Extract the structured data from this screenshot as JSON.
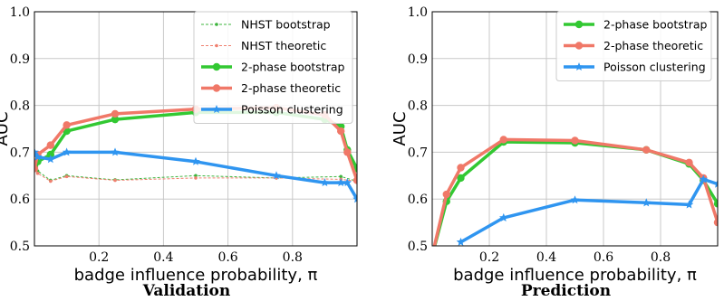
{
  "chart_data": [
    {
      "type": "line",
      "caption": "Validation",
      "xlabel": "badge influence probability, π",
      "ylabel": "AUC",
      "xlim": [
        0.0,
        1.0
      ],
      "ylim": [
        0.5,
        1.0
      ],
      "xticks": [
        0.2,
        0.4,
        0.6,
        0.8
      ],
      "xtick_labels": [
        "0.2",
        "0.4",
        "0.6",
        "0.8"
      ],
      "yticks": [
        0.5,
        0.6,
        0.7,
        0.8,
        0.9,
        1.0
      ],
      "ytick_labels": [
        "0.5",
        "0.6",
        "0.7",
        "0.8",
        "0.9",
        "1.0"
      ],
      "grid": true,
      "legend_position": "top-right",
      "series": [
        {
          "name": "NHST bootstrap",
          "color": "#3cb43c",
          "style": "dashed-dot-marker",
          "x": [
            0.0,
            0.01,
            0.05,
            0.1,
            0.25,
            0.5,
            0.75,
            0.95,
            1.0
          ],
          "y": [
            0.675,
            0.66,
            0.64,
            0.65,
            0.641,
            0.65,
            0.645,
            0.648,
            0.638
          ]
        },
        {
          "name": "NHST theoretic",
          "color": "#f08070",
          "style": "dashed-dot-marker",
          "x": [
            0.0,
            0.01,
            0.05,
            0.1,
            0.25,
            0.5,
            0.75,
            0.95,
            1.0
          ],
          "y": [
            0.67,
            0.655,
            0.638,
            0.648,
            0.64,
            0.645,
            0.645,
            0.642,
            0.638
          ]
        },
        {
          "name": "2-phase bootstrap",
          "color": "#32c832",
          "style": "thick-dot-marker",
          "x": [
            0.0,
            0.01,
            0.05,
            0.1,
            0.25,
            0.5,
            0.75,
            0.9,
            0.95,
            0.97,
            1.0
          ],
          "y": [
            0.67,
            0.68,
            0.695,
            0.745,
            0.77,
            0.785,
            0.785,
            0.77,
            0.755,
            0.705,
            0.665
          ]
        },
        {
          "name": "2-phase theoretic",
          "color": "#f07868",
          "style": "thick-dot-marker",
          "x": [
            0.0,
            0.01,
            0.05,
            0.1,
            0.25,
            0.5,
            0.75,
            0.9,
            0.95,
            0.97,
            1.0
          ],
          "y": [
            0.665,
            0.695,
            0.715,
            0.758,
            0.782,
            0.792,
            0.795,
            0.78,
            0.745,
            0.7,
            0.64
          ]
        },
        {
          "name": "Poisson clustering",
          "color": "#2f95f0",
          "style": "thick-star-marker",
          "x": [
            0.0,
            0.01,
            0.05,
            0.1,
            0.25,
            0.5,
            0.75,
            0.9,
            0.95,
            0.97,
            1.0
          ],
          "y": [
            0.7,
            0.69,
            0.685,
            0.7,
            0.7,
            0.68,
            0.65,
            0.635,
            0.635,
            0.635,
            0.6
          ]
        }
      ]
    },
    {
      "type": "line",
      "caption": "Prediction",
      "xlabel": "badge influence probability, π",
      "ylabel": "AUC",
      "xlim": [
        0.0,
        1.0
      ],
      "ylim": [
        0.5,
        1.0
      ],
      "xticks": [
        0.2,
        0.4,
        0.6,
        0.8
      ],
      "xtick_labels": [
        "0.2",
        "0.4",
        "0.6",
        "0.8"
      ],
      "yticks": [
        0.5,
        0.6,
        0.7,
        0.8,
        0.9,
        1.0
      ],
      "ytick_labels": [
        "0.5",
        "0.6",
        "0.7",
        "0.8",
        "0.9",
        "1.0"
      ],
      "grid": true,
      "legend_position": "top-right",
      "series": [
        {
          "name": "2-phase bootstrap",
          "color": "#32c832",
          "style": "thick-dot-marker",
          "x": [
            0.0,
            0.05,
            0.1,
            0.25,
            0.5,
            0.75,
            0.9,
            0.95,
            1.0
          ],
          "y": [
            0.48,
            0.595,
            0.645,
            0.722,
            0.72,
            0.705,
            0.675,
            0.64,
            0.59
          ]
        },
        {
          "name": "2-phase theoretic",
          "color": "#f07868",
          "style": "thick-dot-marker",
          "x": [
            0.0,
            0.05,
            0.1,
            0.25,
            0.5,
            0.75,
            0.9,
            0.95,
            1.0
          ],
          "y": [
            0.48,
            0.61,
            0.667,
            0.727,
            0.725,
            0.705,
            0.678,
            0.645,
            0.55
          ]
        },
        {
          "name": "Poisson clustering",
          "color": "#2f95f0",
          "style": "thick-star-marker",
          "x": [
            0.1,
            0.25,
            0.5,
            0.75,
            0.9,
            0.95,
            1.0
          ],
          "y": [
            0.508,
            0.56,
            0.598,
            0.592,
            0.588,
            0.642,
            0.632
          ]
        }
      ]
    }
  ]
}
